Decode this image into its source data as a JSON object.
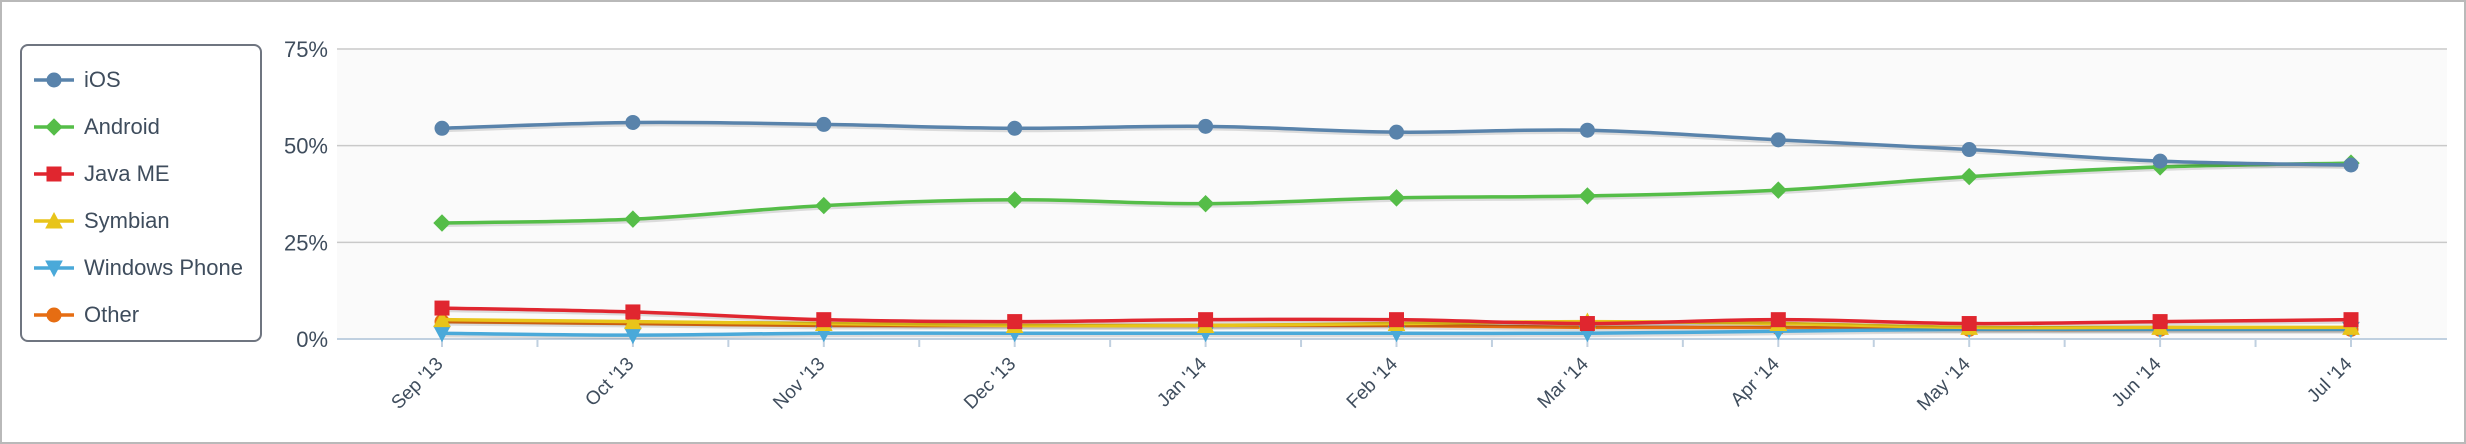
{
  "chart_data": {
    "type": "line",
    "x": [
      "Sep '13",
      "Oct '13",
      "Nov '13",
      "Dec '13",
      "Jan '14",
      "Feb '14",
      "Mar '14",
      "Apr '14",
      "May '14",
      "Jun '14",
      "Jul '14"
    ],
    "y_ticks": [
      "0%",
      "25%",
      "50%",
      "75%"
    ],
    "ylim": [
      0,
      75
    ],
    "y_tick_values": [
      0,
      25,
      50,
      75
    ],
    "grid": true,
    "legend_position": "left",
    "series": [
      {
        "name": "iOS",
        "color": "#5983ab",
        "marker": "circle",
        "values": [
          54.5,
          56,
          55.5,
          54.5,
          55,
          53.5,
          54,
          51.5,
          49,
          46,
          45
        ]
      },
      {
        "name": "Android",
        "color": "#55bd48",
        "marker": "diamond",
        "values": [
          30,
          31,
          34.5,
          36,
          35,
          36.5,
          37,
          38.5,
          42,
          44.5,
          45.5
        ]
      },
      {
        "name": "Java ME",
        "color": "#e0262f",
        "marker": "square",
        "values": [
          8,
          7,
          5,
          4.5,
          5,
          5,
          4,
          5,
          4,
          4.5,
          5
        ]
      },
      {
        "name": "Symbian",
        "color": "#e8c41a",
        "marker": "triangle-up",
        "values": [
          5,
          4.5,
          4,
          3.5,
          3.5,
          4,
          4.5,
          4,
          3,
          3,
          3
        ]
      },
      {
        "name": "Windows Phone",
        "color": "#4aa9d9",
        "marker": "triangle-down",
        "values": [
          1.5,
          1,
          1.5,
          1.5,
          1.5,
          1.5,
          1.5,
          2,
          2.5,
          2.5,
          2.5
        ]
      },
      {
        "name": "Other",
        "color": "#e66d12",
        "marker": "circle",
        "values": [
          4.5,
          4,
          3.5,
          3.5,
          3.5,
          3.5,
          3,
          3,
          2.5,
          2.5,
          2.5
        ]
      }
    ]
  }
}
